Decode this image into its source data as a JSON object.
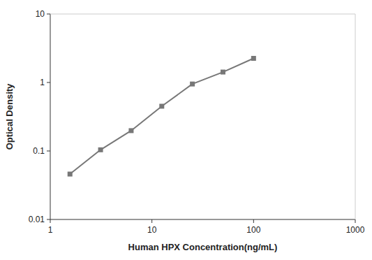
{
  "chart_data": {
    "type": "line",
    "x": [
      1.5625,
      3.125,
      6.25,
      12.5,
      25,
      50,
      100
    ],
    "values": [
      0.046,
      0.104,
      0.198,
      0.45,
      0.95,
      1.42,
      2.25
    ],
    "xlabel": "Human HPX Concentration(ng/mL)",
    "ylabel": "Optical Density",
    "xlim": [
      1,
      1000
    ],
    "ylim": [
      0.01,
      10
    ],
    "xticks": [
      1,
      10,
      100,
      1000
    ],
    "yticks": [
      0.01,
      0.1,
      1,
      10
    ],
    "log": true,
    "grid": false,
    "color": "#777777",
    "marker": "square"
  }
}
